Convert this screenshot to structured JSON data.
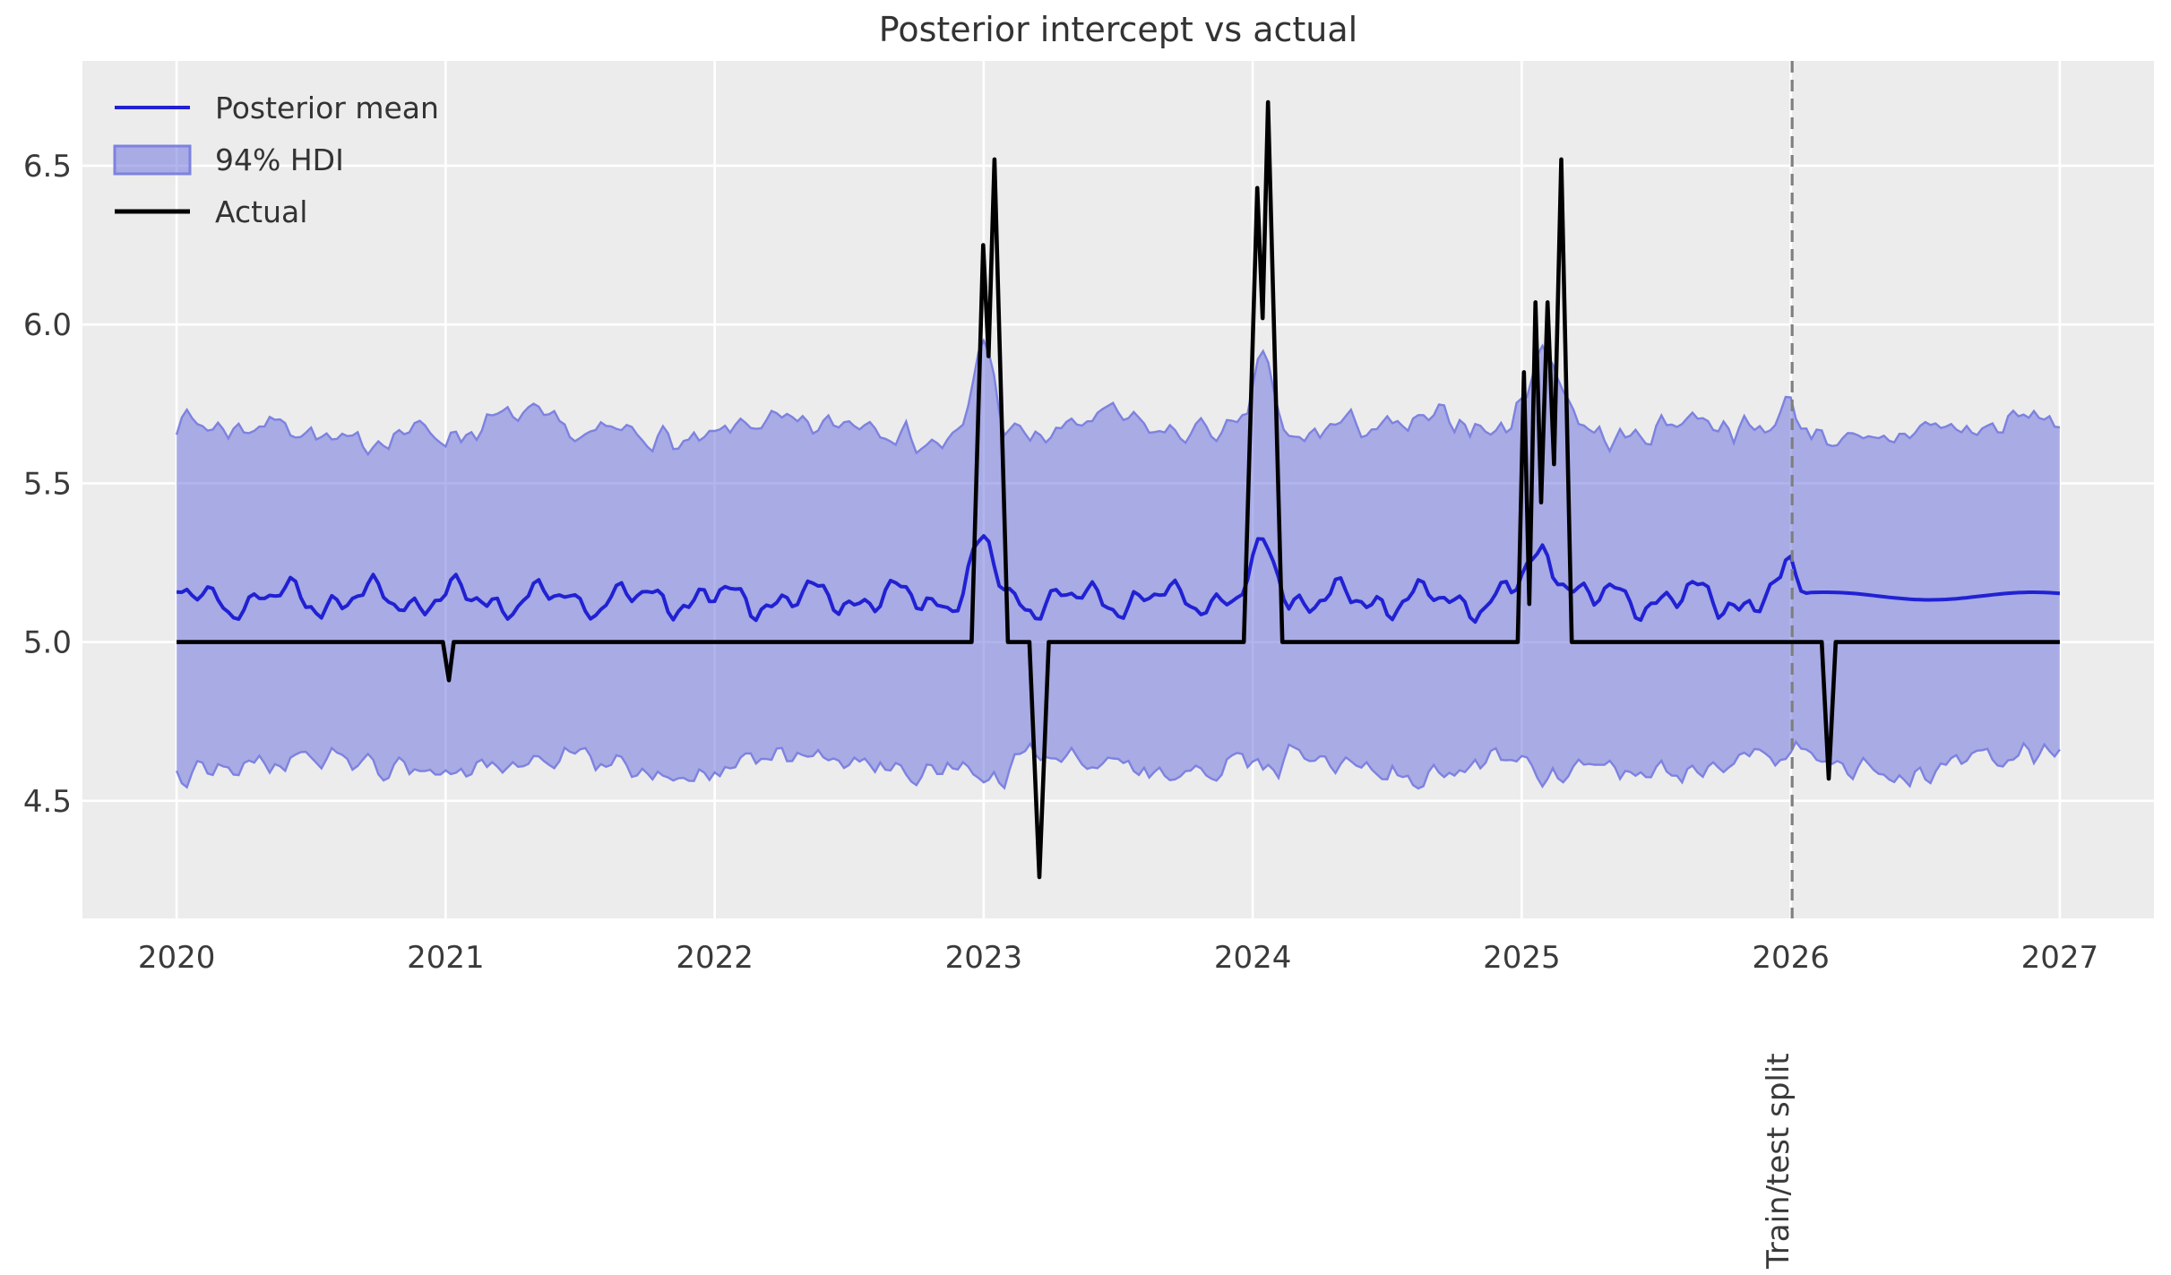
{
  "chart_data": {
    "type": "line",
    "title": "Posterior intercept vs actual",
    "x_ticks": [
      "2020",
      "2021",
      "2022",
      "2023",
      "2024",
      "2025",
      "2026",
      "2027"
    ],
    "y_ticks": [
      "4.5",
      "5.0",
      "5.5",
      "6.0",
      "6.5"
    ],
    "xlim": [
      2019.65,
      2027.35
    ],
    "ylim": [
      4.13,
      6.83
    ],
    "grid": true,
    "legend_position": "upper left",
    "plot_background": "#ececec",
    "grid_color": "#ffffff",
    "text_color": "#3a3a3a",
    "data_start": 2020.0,
    "data_end": 2027.0,
    "points_per_year": 52,
    "series": [
      {
        "name": "Posterior mean",
        "type": "line",
        "color": "#2121d3",
        "base": 5.135,
        "post_split_base": 5.145,
        "wiggle": [
          [
            3.05,
            0.034,
            0.4
          ],
          [
            6.7,
            0.026,
            2.2
          ],
          [
            13.1,
            0.016,
            4.1
          ]
        ],
        "jag_amp": 0.012,
        "bulges": [
          [
            2023.0,
            0.17,
            0.04
          ],
          [
            2024.05,
            0.16,
            0.04
          ],
          [
            2025.09,
            0.15,
            0.06
          ],
          [
            2026.0,
            0.1,
            0.025
          ]
        ]
      },
      {
        "name": "94% HDI",
        "type": "band",
        "fill": "#6a70dc",
        "fill_opacity": 0.52,
        "edge": "#7d82e0",
        "top_base": 5.665,
        "bottom_base": 4.615,
        "top_jag_amp": 0.052,
        "bottom_jag_amp": 0.048,
        "top_slow": [
          [
            0.9,
            0.028,
            0.7
          ],
          [
            2.3,
            0.02,
            2.0
          ]
        ],
        "bottom_slow": [
          [
            1.1,
            0.03,
            1.2
          ]
        ],
        "top_bulges": [
          [
            2023.0,
            0.3,
            0.035
          ],
          [
            2024.04,
            0.3,
            0.035
          ],
          [
            2025.08,
            0.27,
            0.07
          ],
          [
            2025.98,
            0.08,
            0.03
          ]
        ],
        "bottom_bulges": [
          [
            2023.05,
            0.06,
            0.05
          ],
          [
            2024.06,
            0.05,
            0.04
          ],
          [
            2025.1,
            0.07,
            0.06
          ]
        ]
      },
      {
        "name": "Actual",
        "type": "line",
        "color": "#000000",
        "points": [
          [
            2020.0,
            5.0
          ],
          [
            2020.99,
            5.0
          ],
          [
            2021.012,
            4.88
          ],
          [
            2021.03,
            5.0
          ],
          [
            2022.955,
            5.0
          ],
          [
            2022.998,
            6.25
          ],
          [
            2023.018,
            5.9
          ],
          [
            2023.04,
            6.52
          ],
          [
            2023.09,
            5.0
          ],
          [
            2023.17,
            5.0
          ],
          [
            2023.207,
            4.26
          ],
          [
            2023.242,
            5.0
          ],
          [
            2023.967,
            5.0
          ],
          [
            2024.017,
            6.43
          ],
          [
            2024.037,
            6.02
          ],
          [
            2024.057,
            6.7
          ],
          [
            2024.11,
            5.0
          ],
          [
            2024.985,
            5.0
          ],
          [
            2025.008,
            5.85
          ],
          [
            2025.028,
            5.12
          ],
          [
            2025.051,
            6.07
          ],
          [
            2025.072,
            5.44
          ],
          [
            2025.096,
            6.07
          ],
          [
            2025.12,
            5.56
          ],
          [
            2025.147,
            6.52
          ],
          [
            2025.186,
            5.0
          ],
          [
            2026.115,
            5.0
          ],
          [
            2026.141,
            4.57
          ],
          [
            2026.167,
            5.0
          ],
          [
            2027.0,
            5.0
          ]
        ]
      }
    ],
    "split_line": {
      "x": 2026.005,
      "label": "Train/test split",
      "color": "#7f7f7f",
      "style": "dashed"
    }
  },
  "legend": {
    "items": [
      "Posterior mean",
      "94% HDI",
      "Actual"
    ]
  }
}
